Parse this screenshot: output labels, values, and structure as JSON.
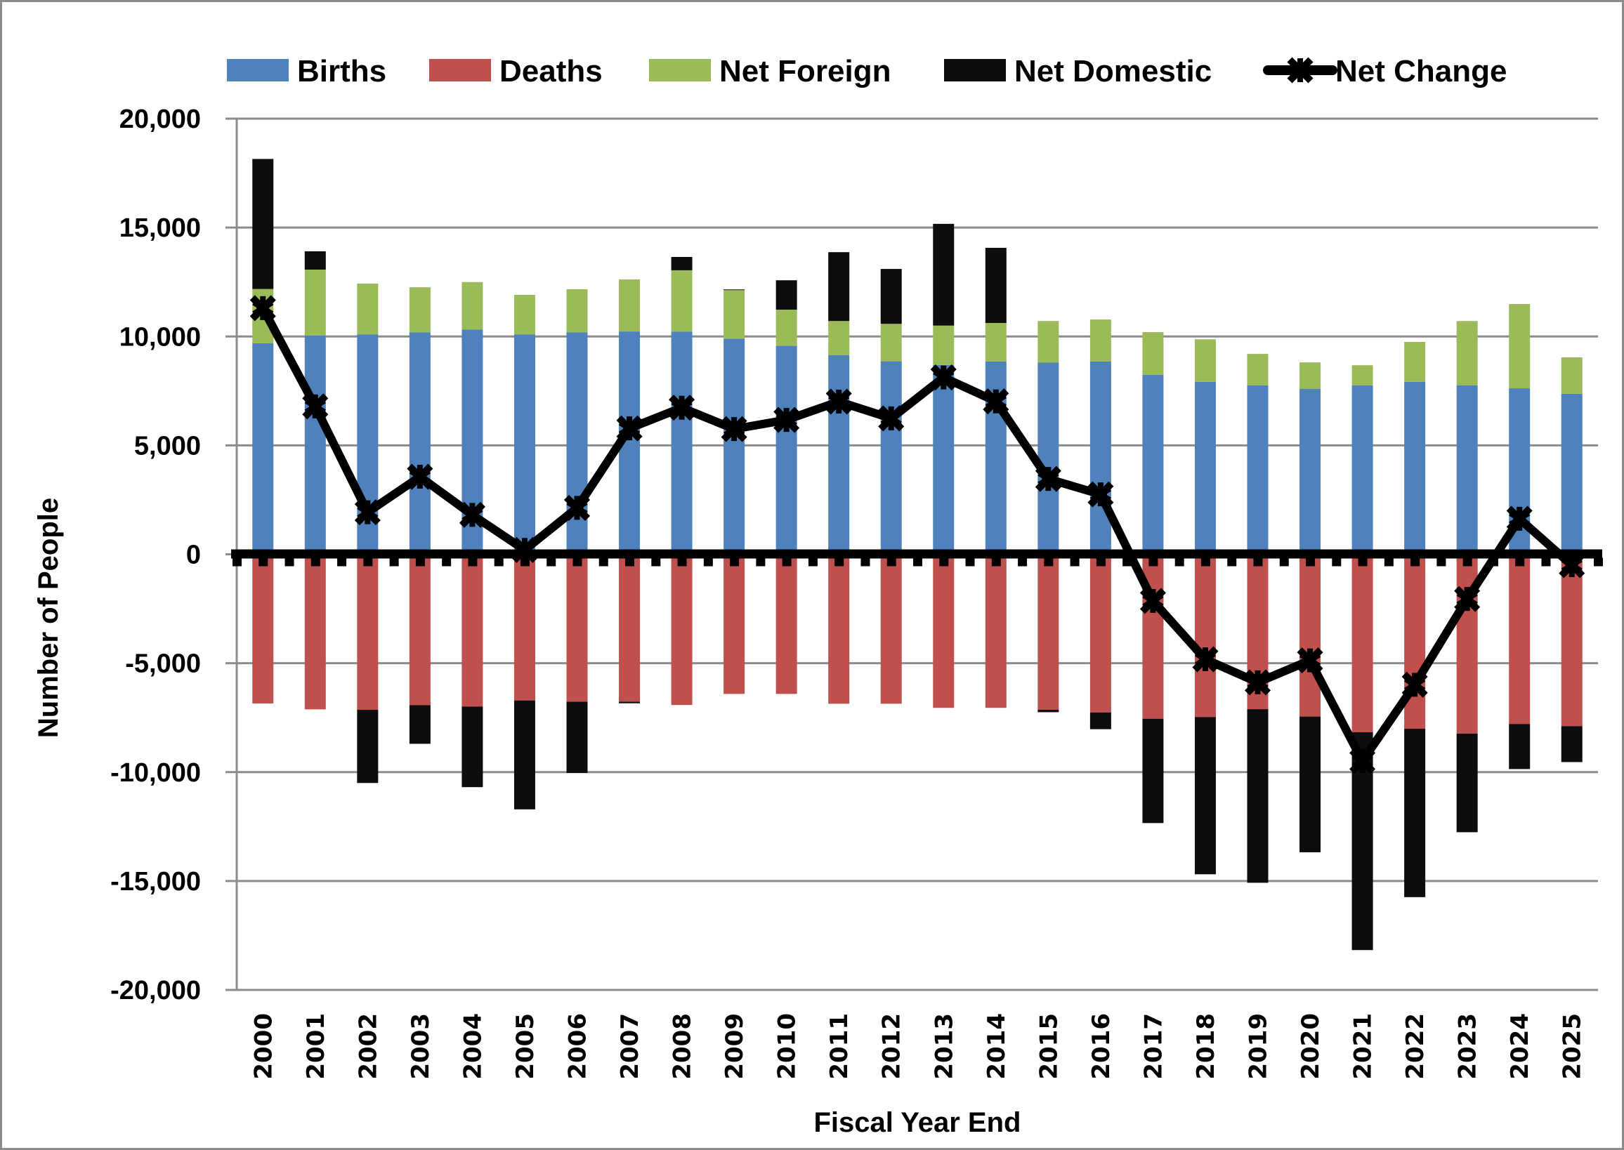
{
  "chart_data": {
    "type": "bar",
    "subtype": "stacked-bar-with-line",
    "title": "",
    "xlabel": "Fiscal Year End",
    "ylabel": "Number of People",
    "ylim": [
      -20000,
      20000
    ],
    "ytick_step": 5000,
    "ytick_labels": [
      "20,000",
      "15,000",
      "10,000",
      "5,000",
      "0",
      "-5,000",
      "-10,000",
      "-15,000",
      "-20,000"
    ],
    "grid": true,
    "legend_position": "top",
    "categories": [
      "2000",
      "2001",
      "2002",
      "2003",
      "2004",
      "2005",
      "2006",
      "2007",
      "2008",
      "2009",
      "2010",
      "2011",
      "2012",
      "2013",
      "2014",
      "2015",
      "2016",
      "2017",
      "2018",
      "2019",
      "2020",
      "2021",
      "2022",
      "2023",
      "2024",
      "2025"
    ],
    "series": [
      {
        "name": "Births",
        "type": "bar",
        "color": "#4F81BD",
        "values": [
          9690,
          10040,
          10090,
          10190,
          10320,
          10090,
          10190,
          10230,
          10220,
          9900,
          9570,
          9140,
          8860,
          8690,
          8850,
          8800,
          8850,
          8240,
          7920,
          7760,
          7590,
          7760,
          7920,
          7760,
          7620,
          7370
        ]
      },
      {
        "name": "Deaths",
        "type": "bar",
        "color": "#C0504D",
        "values": [
          -6850,
          -7120,
          -7140,
          -6930,
          -6990,
          -6710,
          -6770,
          -6770,
          -6920,
          -6410,
          -6410,
          -6860,
          -6860,
          -7050,
          -7050,
          -7140,
          -7260,
          -7550,
          -7470,
          -7110,
          -7450,
          -8170,
          -8010,
          -8230,
          -7790,
          -7890
        ]
      },
      {
        "name": "Net Foreign",
        "type": "bar",
        "color": "#9BBB59",
        "values": [
          2490,
          3030,
          2340,
          2070,
          2180,
          1820,
          1980,
          2390,
          2820,
          2230,
          1660,
          1570,
          1720,
          1810,
          1770,
          1910,
          1930,
          1960,
          1950,
          1440,
          1220,
          920,
          1830,
          2950,
          3870,
          1670
        ]
      },
      {
        "name": "Net Domestic",
        "type": "bar",
        "color": "#0D0D0D",
        "values": [
          5970,
          840,
          -3360,
          -1770,
          -3700,
          -5000,
          -3270,
          -70,
          610,
          30,
          1350,
          3160,
          2520,
          4670,
          3450,
          -110,
          -770,
          -4790,
          -7220,
          -7970,
          -6230,
          -10000,
          -7730,
          -4530,
          -2070,
          -1650
        ]
      },
      {
        "name": "Net Change",
        "type": "line",
        "color": "#000000",
        "marker": "x-star",
        "values": [
          11300,
          6790,
          1930,
          3560,
          1810,
          200,
          2130,
          5780,
          6730,
          5750,
          6170,
          7010,
          6240,
          8120,
          7020,
          3460,
          2750,
          -2140,
          -4820,
          -5880,
          -4870,
          -9490,
          -5990,
          -2050,
          1630,
          -500
        ]
      }
    ]
  },
  "legend": {
    "items": [
      {
        "label": "Births",
        "color": "#4F81BD",
        "kind": "box"
      },
      {
        "label": "Deaths",
        "color": "#C0504D",
        "kind": "box"
      },
      {
        "label": "Net Foreign",
        "color": "#9BBB59",
        "kind": "box"
      },
      {
        "label": "Net Domestic",
        "color": "#0D0D0D",
        "kind": "box"
      },
      {
        "label": "Net Change",
        "color": "#000000",
        "kind": "line-marker"
      }
    ]
  },
  "colors": {
    "gridline": "#8C8C8C",
    "axis": "#000000",
    "frame": "#8C8C8C"
  }
}
